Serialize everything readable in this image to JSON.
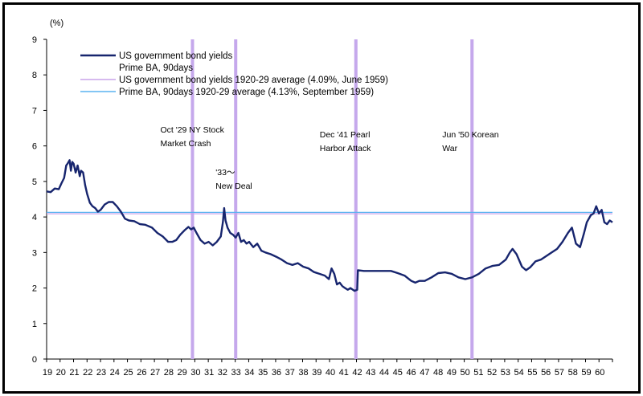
{
  "chart_data": {
    "type": "line",
    "unit_label": "(%)",
    "ylim": [
      0,
      9
    ],
    "y_ticks": [
      0,
      1,
      2,
      3,
      4,
      5,
      6,
      7,
      8,
      9
    ],
    "xlim": [
      1919,
      1960.9
    ],
    "x_ticks": [
      "19",
      "20",
      "21",
      "22",
      "23",
      "24",
      "25",
      "26",
      "27",
      "28",
      "29",
      "30",
      "31",
      "32",
      "33",
      "34",
      "35",
      "36",
      "37",
      "38",
      "39",
      "40",
      "41",
      "42",
      "43",
      "44",
      "45",
      "46",
      "47",
      "48",
      "49",
      "50",
      "51",
      "52",
      "53",
      "54",
      "55",
      "56",
      "57",
      "58",
      "59",
      "60"
    ],
    "series": [
      {
        "name": "US government bond yields",
        "color": "#17256e",
        "points": [
          [
            1919.0,
            4.72
          ],
          [
            1919.3,
            4.7
          ],
          [
            1919.6,
            4.8
          ],
          [
            1919.9,
            4.78
          ],
          [
            1920.1,
            4.95
          ],
          [
            1920.3,
            5.1
          ],
          [
            1920.45,
            5.45
          ],
          [
            1920.55,
            5.5
          ],
          [
            1920.7,
            5.6
          ],
          [
            1920.8,
            5.3
          ],
          [
            1920.9,
            5.55
          ],
          [
            1921.0,
            5.5
          ],
          [
            1921.15,
            5.25
          ],
          [
            1921.3,
            5.45
          ],
          [
            1921.45,
            5.15
          ],
          [
            1921.55,
            5.3
          ],
          [
            1921.7,
            5.25
          ],
          [
            1921.85,
            4.9
          ],
          [
            1922.0,
            4.65
          ],
          [
            1922.2,
            4.4
          ],
          [
            1922.4,
            4.3
          ],
          [
            1922.6,
            4.25
          ],
          [
            1922.8,
            4.15
          ],
          [
            1923.0,
            4.2
          ],
          [
            1923.3,
            4.35
          ],
          [
            1923.6,
            4.42
          ],
          [
            1923.9,
            4.42
          ],
          [
            1924.2,
            4.3
          ],
          [
            1924.5,
            4.15
          ],
          [
            1924.8,
            3.95
          ],
          [
            1925.1,
            3.9
          ],
          [
            1925.5,
            3.88
          ],
          [
            1925.9,
            3.8
          ],
          [
            1926.3,
            3.78
          ],
          [
            1926.8,
            3.7
          ],
          [
            1927.2,
            3.55
          ],
          [
            1927.6,
            3.45
          ],
          [
            1928.0,
            3.3
          ],
          [
            1928.3,
            3.3
          ],
          [
            1928.6,
            3.35
          ],
          [
            1928.9,
            3.5
          ],
          [
            1929.2,
            3.62
          ],
          [
            1929.5,
            3.72
          ],
          [
            1929.7,
            3.65
          ],
          [
            1929.9,
            3.7
          ],
          [
            1930.1,
            3.55
          ],
          [
            1930.4,
            3.35
          ],
          [
            1930.7,
            3.25
          ],
          [
            1931.0,
            3.3
          ],
          [
            1931.3,
            3.2
          ],
          [
            1931.6,
            3.3
          ],
          [
            1931.9,
            3.45
          ],
          [
            1932.05,
            3.85
          ],
          [
            1932.15,
            4.25
          ],
          [
            1932.25,
            3.9
          ],
          [
            1932.4,
            3.7
          ],
          [
            1932.6,
            3.55
          ],
          [
            1932.8,
            3.5
          ],
          [
            1933.0,
            3.42
          ],
          [
            1933.2,
            3.55
          ],
          [
            1933.4,
            3.3
          ],
          [
            1933.6,
            3.35
          ],
          [
            1933.8,
            3.25
          ],
          [
            1934.0,
            3.3
          ],
          [
            1934.3,
            3.15
          ],
          [
            1934.6,
            3.25
          ],
          [
            1934.9,
            3.05
          ],
          [
            1935.2,
            3.0
          ],
          [
            1935.6,
            2.95
          ],
          [
            1936.0,
            2.88
          ],
          [
            1936.4,
            2.8
          ],
          [
            1936.8,
            2.7
          ],
          [
            1937.2,
            2.65
          ],
          [
            1937.6,
            2.7
          ],
          [
            1938.0,
            2.6
          ],
          [
            1938.4,
            2.55
          ],
          [
            1938.8,
            2.45
          ],
          [
            1939.2,
            2.4
          ],
          [
            1939.6,
            2.35
          ],
          [
            1939.9,
            2.25
          ],
          [
            1940.1,
            2.55
          ],
          [
            1940.3,
            2.4
          ],
          [
            1940.5,
            2.1
          ],
          [
            1940.7,
            2.15
          ],
          [
            1940.9,
            2.05
          ],
          [
            1941.1,
            2.0
          ],
          [
            1941.3,
            1.95
          ],
          [
            1941.5,
            2.0
          ],
          [
            1941.8,
            1.92
          ],
          [
            1942.0,
            1.95
          ],
          [
            1942.05,
            2.5
          ],
          [
            1942.5,
            2.48
          ],
          [
            1943.0,
            2.48
          ],
          [
            1943.5,
            2.48
          ],
          [
            1944.0,
            2.48
          ],
          [
            1944.5,
            2.48
          ],
          [
            1945.0,
            2.42
          ],
          [
            1945.5,
            2.35
          ],
          [
            1946.0,
            2.2
          ],
          [
            1946.3,
            2.15
          ],
          [
            1946.6,
            2.2
          ],
          [
            1947.0,
            2.2
          ],
          [
            1947.5,
            2.3
          ],
          [
            1948.0,
            2.42
          ],
          [
            1948.5,
            2.44
          ],
          [
            1949.0,
            2.4
          ],
          [
            1949.5,
            2.3
          ],
          [
            1950.0,
            2.25
          ],
          [
            1950.5,
            2.3
          ],
          [
            1951.0,
            2.4
          ],
          [
            1951.5,
            2.55
          ],
          [
            1952.0,
            2.62
          ],
          [
            1952.5,
            2.65
          ],
          [
            1953.0,
            2.8
          ],
          [
            1953.3,
            3.0
          ],
          [
            1953.5,
            3.1
          ],
          [
            1953.8,
            2.95
          ],
          [
            1954.2,
            2.6
          ],
          [
            1954.5,
            2.5
          ],
          [
            1954.8,
            2.58
          ],
          [
            1955.2,
            2.75
          ],
          [
            1955.6,
            2.8
          ],
          [
            1956.0,
            2.9
          ],
          [
            1956.4,
            3.0
          ],
          [
            1956.8,
            3.1
          ],
          [
            1957.2,
            3.3
          ],
          [
            1957.6,
            3.55
          ],
          [
            1957.9,
            3.7
          ],
          [
            1958.2,
            3.25
          ],
          [
            1958.5,
            3.15
          ],
          [
            1958.8,
            3.55
          ],
          [
            1959.0,
            3.85
          ],
          [
            1959.3,
            4.05
          ],
          [
            1959.5,
            4.1
          ],
          [
            1959.7,
            4.3
          ],
          [
            1959.9,
            4.1
          ],
          [
            1960.1,
            4.2
          ],
          [
            1960.3,
            3.85
          ],
          [
            1960.5,
            3.8
          ],
          [
            1960.7,
            3.9
          ],
          [
            1960.9,
            3.85
          ]
        ]
      },
      {
        "name": "Prime BA, 90days",
        "color": "#17256e",
        "points": []
      }
    ],
    "reference_lines": [
      {
        "name": "US government bond yields 1920-29 average (4.09%, June 1959)",
        "color": "#c9a3ea",
        "value": 4.09
      },
      {
        "name": "Prime BA, 90days 1920-29 average (4.13%, September 1959)",
        "color": "#5ab3f0",
        "value": 4.13
      }
    ],
    "event_lines": [
      {
        "x": 1929.8,
        "label_lines": [
          "Oct '29 NY Stock",
          "Market Crash"
        ]
      },
      {
        "x": 1933.0,
        "label_lines": [
          "'33～",
          "New Deal"
        ]
      },
      {
        "x": 1941.9,
        "label_lines": [
          "Dec '41 Pearl",
          "Harbor Attack"
        ]
      },
      {
        "x": 1950.5,
        "label_lines": [
          "Jun '50 Korean",
          "War"
        ]
      }
    ],
    "event_line_color": "#c5a8ec"
  }
}
